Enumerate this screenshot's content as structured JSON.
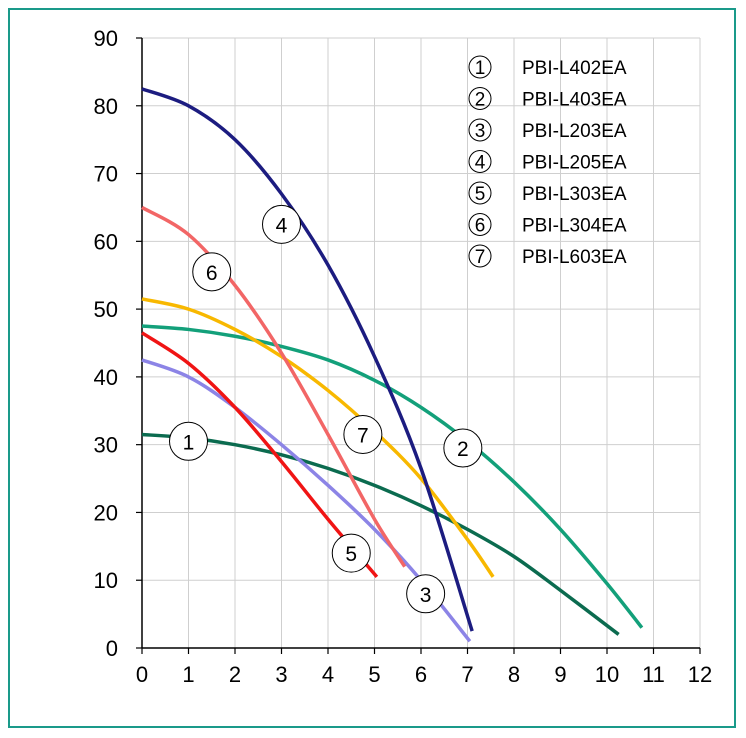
{
  "chart_data": {
    "type": "line",
    "title": "",
    "xlabel": "",
    "ylabel": "",
    "xlim": [
      0,
      12
    ],
    "ylim": [
      0,
      90
    ],
    "x_ticks": [
      "0",
      "1",
      "2",
      "3",
      "4",
      "5",
      "6",
      "7",
      "8",
      "9",
      "10",
      "11",
      "12"
    ],
    "y_ticks": [
      "0",
      "10",
      "20",
      "30",
      "40",
      "50",
      "60",
      "70",
      "80",
      "90"
    ],
    "grid": true,
    "legend_position": "top-right",
    "series": [
      {
        "name": "PBI-L402EA",
        "marker": "①",
        "color": "#0b6b4f",
        "x": [
          0,
          1,
          2,
          3,
          4,
          5,
          6,
          7,
          8,
          9,
          10.25
        ],
        "y": [
          31.5,
          31,
          30,
          28.5,
          26.5,
          24,
          21,
          17.5,
          13.5,
          8.5,
          2
        ],
        "label_at": [
          1.0,
          30.5
        ]
      },
      {
        "name": "PBI-L403EA",
        "marker": "②",
        "color": "#13a07a",
        "x": [
          0,
          1,
          2,
          3,
          4,
          5,
          6,
          7,
          8,
          9,
          10,
          10.75
        ],
        "y": [
          47.5,
          47,
          46,
          44.5,
          42.5,
          39.5,
          35.5,
          30.5,
          24.5,
          17.5,
          9.5,
          3
        ],
        "label_at": [
          6.9,
          29.5
        ]
      },
      {
        "name": "PBI-L203EA",
        "marker": "③",
        "color": "#8c84e6",
        "x": [
          0,
          1,
          2,
          3,
          4,
          5,
          6,
          7.05
        ],
        "y": [
          42.5,
          40,
          35.5,
          30,
          24,
          17.5,
          10,
          1
        ],
        "label_at": [
          6.1,
          8
        ]
      },
      {
        "name": "PBI-L205EA",
        "marker": "④",
        "color": "#1c1c80",
        "x": [
          0,
          1,
          2,
          3,
          4,
          5,
          6,
          7.1
        ],
        "y": [
          82.5,
          80,
          75,
          67,
          56.5,
          43,
          26.5,
          2.5
        ],
        "label_at": [
          3.0,
          62.5
        ]
      },
      {
        "name": "PBI-L303EA",
        "marker": "⑤",
        "color": "#f01414",
        "x": [
          0,
          1,
          2,
          3,
          4,
          5.05
        ],
        "y": [
          46.5,
          42,
          35.5,
          27.5,
          19,
          10.5
        ],
        "label_at": [
          4.5,
          14
        ]
      },
      {
        "name": "PBI-L304EA",
        "marker": "⑥",
        "color": "#f26666",
        "x": [
          0,
          1,
          2,
          3,
          4,
          5,
          5.65
        ],
        "y": [
          65,
          61,
          53.5,
          43.5,
          31.5,
          19,
          12
        ],
        "label_at": [
          1.5,
          55.5
        ]
      },
      {
        "name": "PBI-L603EA",
        "marker": "⑦",
        "color": "#f8b800",
        "x": [
          0,
          1,
          2,
          3,
          4,
          5,
          6,
          7,
          7.55
        ],
        "y": [
          51.5,
          50,
          47,
          43,
          38,
          32,
          25,
          16,
          10.5
        ],
        "label_at": [
          4.75,
          31.5
        ]
      }
    ]
  }
}
